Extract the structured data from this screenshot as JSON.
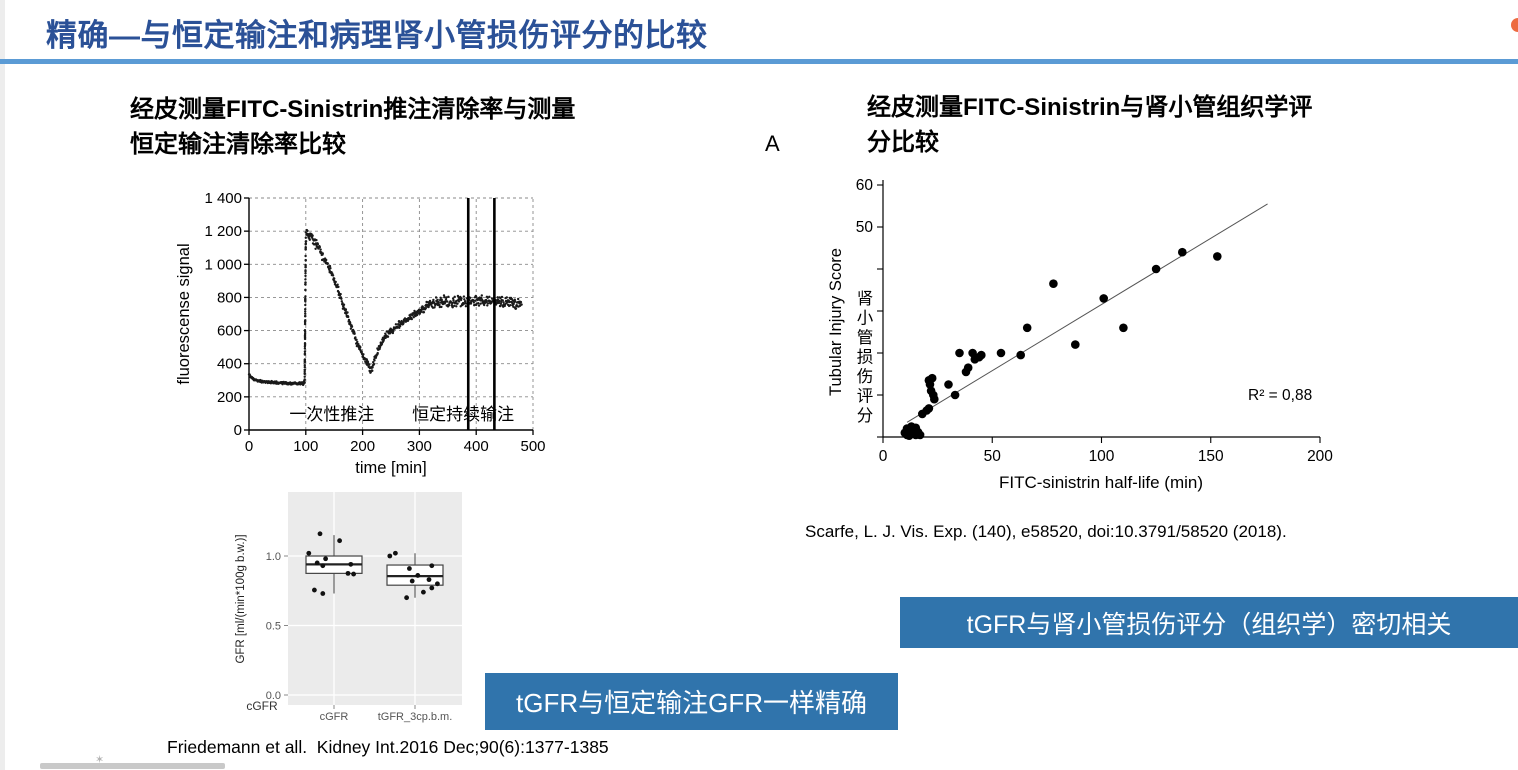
{
  "title": "精确—与恒定输注和病理肾小管损伤评分的比较",
  "colors": {
    "title_blue": "#2B5197",
    "rule_blue": "#5B9BD5",
    "banner_blue": "#3074AC",
    "accent_orange": "#ED6B40"
  },
  "left": {
    "heading_line1": "经皮测量FITC-Sinistrin推注清除率与测量",
    "heading_line2": "恒定输注清除率比较",
    "citation": "Friedemann et all.  Kidney Int.2016 Dec;90(6):1377-1385",
    "banner": "tGFR与恒定输注GFR一样精确"
  },
  "right": {
    "panel_label": "A",
    "heading_line1": "经皮测量FITC-Sinistrin与肾小管组织学评",
    "heading_line2": "分比较",
    "citation": "Scarfe, L. J. Vis. Exp. (140), e58520, doi:10.3791/58520 (2018).",
    "banner": "tGFR与肾小管损伤评分（组织学）密切相关"
  },
  "chart_data": [
    {
      "id": "fluorescence-line",
      "type": "line",
      "xlabel": "time [min]",
      "ylabel": "fluorescense signal",
      "xlim": [
        0,
        500
      ],
      "ylim": [
        0,
        1400
      ],
      "xticks": [
        0,
        100,
        200,
        300,
        400,
        500
      ],
      "yticks": [
        0,
        200,
        400,
        600,
        800,
        1000,
        1200,
        1400
      ],
      "ytick_labels": [
        "0",
        "200",
        "400",
        "600",
        "800",
        "1 000",
        "1 200",
        "1 400"
      ],
      "grid": "dashed",
      "event_lines_x": [
        386,
        432
      ],
      "annotations": [
        {
          "text": "一次性推注",
          "x": 146,
          "y": 60
        },
        {
          "text": "恒定持续输注",
          "x": 377,
          "y": 60
        }
      ],
      "series": [
        {
          "name": "fluorescence signal",
          "points": [
            [
              0,
              335,
              6
            ],
            [
              4,
              318,
              6
            ],
            [
              8,
              306,
              7
            ],
            [
              15,
              298,
              7
            ],
            [
              25,
              292,
              8
            ],
            [
              40,
              288,
              8
            ],
            [
              55,
              285,
              9
            ],
            [
              70,
              283,
              9
            ],
            [
              85,
              281,
              10
            ],
            [
              96,
              280,
              10
            ],
            [
              98,
              300,
              25
            ],
            [
              100,
              1150,
              80
            ],
            [
              103,
              1190,
              30
            ],
            [
              107,
              1175,
              35
            ],
            [
              112,
              1150,
              38
            ],
            [
              118,
              1120,
              38
            ],
            [
              126,
              1070,
              36
            ],
            [
              134,
              1020,
              34
            ],
            [
              142,
              975,
              32
            ],
            [
              150,
              905,
              30
            ],
            [
              158,
              840,
              28
            ],
            [
              166,
              745,
              26
            ],
            [
              172,
              700,
              26
            ],
            [
              178,
              640,
              24
            ],
            [
              184,
              600,
              24
            ],
            [
              190,
              525,
              22
            ],
            [
              196,
              480,
              22
            ],
            [
              202,
              440,
              22
            ],
            [
              208,
              405,
              24
            ],
            [
              213,
              360,
              26
            ],
            [
              217,
              355,
              28
            ],
            [
              221,
              430,
              30
            ],
            [
              226,
              480,
              28
            ],
            [
              232,
              525,
              26
            ],
            [
              240,
              565,
              25
            ],
            [
              248,
              592,
              25
            ],
            [
              256,
              615,
              25
            ],
            [
              264,
              638,
              26
            ],
            [
              272,
              652,
              26
            ],
            [
              280,
              668,
              28
            ],
            [
              288,
              695,
              28
            ],
            [
              296,
              712,
              28
            ],
            [
              304,
              722,
              28
            ],
            [
              312,
              748,
              30
            ],
            [
              322,
              764,
              32
            ],
            [
              332,
              772,
              36
            ],
            [
              344,
              776,
              38
            ],
            [
              358,
              772,
              40
            ],
            [
              372,
              778,
              40
            ],
            [
              386,
              776,
              42
            ],
            [
              400,
              780,
              42
            ],
            [
              414,
              776,
              42
            ],
            [
              428,
              780,
              42
            ],
            [
              442,
              774,
              42
            ],
            [
              456,
              776,
              42
            ],
            [
              468,
              764,
              44
            ],
            [
              480,
              766,
              42
            ]
          ]
        }
      ]
    },
    {
      "id": "gfr-boxplot",
      "type": "boxplot",
      "ylabel": "GFR [ml/(min*100g b.w.)]",
      "ylim": [
        0,
        1.45
      ],
      "yticks": [
        0.0,
        0.5,
        1.0
      ],
      "ytick_labels": [
        "0.0",
        "0.5",
        "1.0"
      ],
      "categories": [
        "cGFR",
        "tGFR_3cp.b.m."
      ],
      "outside_label": "cGFR",
      "boxes": [
        {
          "whisker_low": 0.73,
          "q1": 0.875,
          "median": 0.94,
          "q3": 1.0,
          "whisker_high": 1.15
        },
        {
          "whisker_low": 0.7,
          "q1": 0.79,
          "median": 0.855,
          "q3": 0.935,
          "whisker_high": 1.02
        }
      ],
      "jitter_points": [
        [
          [
            -0.25,
            1.16
          ],
          [
            0.1,
            1.11
          ],
          [
            -0.45,
            1.02
          ],
          [
            -0.15,
            0.98
          ],
          [
            -0.3,
            0.95
          ],
          [
            0.3,
            0.94
          ],
          [
            -0.2,
            0.93
          ],
          [
            0.25,
            0.875
          ],
          [
            0.35,
            0.87
          ],
          [
            -0.35,
            0.755
          ],
          [
            -0.2,
            0.73
          ]
        ],
        [
          [
            -0.35,
            1.02
          ],
          [
            -0.45,
            1.0
          ],
          [
            -0.1,
            0.91
          ],
          [
            0.3,
            0.93
          ],
          [
            0.05,
            0.86
          ],
          [
            0.25,
            0.83
          ],
          [
            -0.05,
            0.82
          ],
          [
            0.4,
            0.8
          ],
          [
            0.3,
            0.77
          ],
          [
            0.15,
            0.74
          ],
          [
            -0.15,
            0.7
          ]
        ]
      ]
    },
    {
      "id": "injury-scatter",
      "type": "scatter",
      "xlabel": "FITC-sinistrin half-life (min)",
      "ylabel": "Tubular Injury Score",
      "ylabel_cn": "肾小管损伤评分",
      "xlim": [
        0,
        200
      ],
      "ylim": [
        0,
        60
      ],
      "xticks": [
        0,
        50,
        100,
        150,
        200
      ],
      "yticks": [
        0,
        10,
        20,
        30,
        40,
        50,
        60
      ],
      "ytick_labels_shown": [
        50,
        60
      ],
      "r2_label": "R² = 0,88",
      "trendline": {
        "x1": 11,
        "y1": 3.5,
        "x2": 176,
        "y2": 55.5
      },
      "points": [
        [
          10,
          1
        ],
        [
          11,
          0.5
        ],
        [
          11,
          2
        ],
        [
          12,
          1.5
        ],
        [
          12,
          0.3
        ],
        [
          13,
          2.5
        ],
        [
          13,
          0.8
        ],
        [
          14,
          1.5
        ],
        [
          15,
          0.5
        ],
        [
          15,
          2.2
        ],
        [
          16,
          1.2
        ],
        [
          17,
          0.5
        ],
        [
          18,
          5.5
        ],
        [
          20,
          6.3
        ],
        [
          21,
          6.8
        ],
        [
          21,
          13.5
        ],
        [
          21.5,
          12.5
        ],
        [
          22,
          11
        ],
        [
          22.5,
          14
        ],
        [
          23,
          10
        ],
        [
          23.5,
          9
        ],
        [
          30,
          12.5
        ],
        [
          33,
          10
        ],
        [
          35,
          20
        ],
        [
          38,
          15.5
        ],
        [
          39,
          16.5
        ],
        [
          41,
          20
        ],
        [
          42,
          18.5
        ],
        [
          44,
          19
        ],
        [
          45,
          19.5
        ],
        [
          54,
          20
        ],
        [
          63,
          19.5
        ],
        [
          66,
          26
        ],
        [
          78,
          36.5
        ],
        [
          88,
          22
        ],
        [
          101,
          33
        ],
        [
          110,
          26
        ],
        [
          125,
          40
        ],
        [
          137,
          44
        ],
        [
          153,
          43
        ]
      ]
    }
  ]
}
